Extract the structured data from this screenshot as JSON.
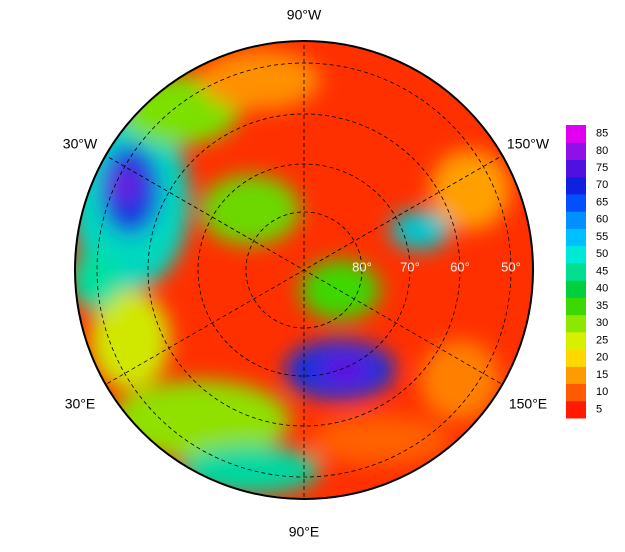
{
  "map": {
    "lon_labels": [
      "90°W",
      "30°W",
      "150°W",
      "30°E",
      "150°E",
      "90°E"
    ],
    "lat_labels": [
      "80°",
      "70°",
      "60°",
      "50°"
    ],
    "colorbar": {
      "ticks": [
        5,
        10,
        15,
        20,
        25,
        30,
        35,
        40,
        45,
        50,
        55,
        60,
        65,
        70,
        75,
        80,
        85
      ],
      "colors": [
        "#ff1a00",
        "#ff5a00",
        "#ff9a00",
        "#ffd800",
        "#d8f000",
        "#8ce800",
        "#3cd800",
        "#00d040",
        "#00e090",
        "#00e8d8",
        "#00c0ff",
        "#0090ff",
        "#0050ff",
        "#1020e0",
        "#5010e0",
        "#9010e8",
        "#e000f0"
      ]
    }
  }
}
